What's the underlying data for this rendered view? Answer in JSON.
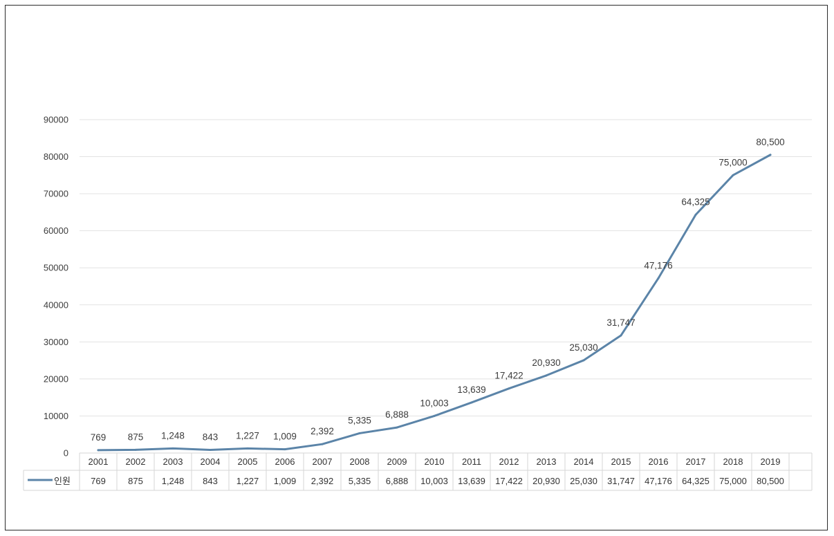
{
  "chart_data": {
    "type": "line",
    "title": "",
    "xlabel": "",
    "ylabel": "",
    "ylim": [
      0,
      90000
    ],
    "yticks": [
      0,
      10000,
      20000,
      30000,
      40000,
      50000,
      60000,
      70000,
      80000,
      90000
    ],
    "grid": true,
    "legend": "data-table",
    "categories": [
      "2001",
      "2002",
      "2003",
      "2004",
      "2005",
      "2006",
      "2007",
      "2008",
      "2009",
      "2010",
      "2011",
      "2012",
      "2013",
      "2014",
      "2015",
      "2016",
      "2017",
      "2018",
      "2019"
    ],
    "series": [
      {
        "name": "인원",
        "color": "#5b84a8",
        "values": [
          769,
          875,
          1248,
          843,
          1227,
          1009,
          2392,
          5335,
          6888,
          10003,
          13639,
          17422,
          20930,
          25030,
          31747,
          47176,
          64325,
          75000,
          80500
        ],
        "labels": [
          "769",
          "875",
          "1,248",
          "843",
          "1,227",
          "1,009",
          "2,392",
          "5,335",
          "6,888",
          "10,003",
          "13,639",
          "17,422",
          "20,930",
          "25,030",
          "31,747",
          "47,176",
          "64,325",
          "75,000",
          "80,500"
        ]
      }
    ]
  }
}
